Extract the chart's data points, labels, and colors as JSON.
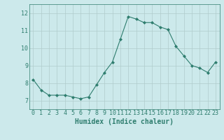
{
  "x": [
    0,
    1,
    2,
    3,
    4,
    5,
    6,
    7,
    8,
    9,
    10,
    11,
    12,
    13,
    14,
    15,
    16,
    17,
    18,
    19,
    20,
    21,
    22,
    23
  ],
  "y": [
    8.2,
    7.6,
    7.3,
    7.3,
    7.3,
    7.2,
    7.1,
    7.2,
    7.9,
    8.6,
    9.2,
    10.5,
    11.8,
    11.65,
    11.45,
    11.45,
    11.2,
    11.05,
    10.1,
    9.55,
    9.0,
    8.85,
    8.6,
    9.2
  ],
  "line_color": "#2e7d6e",
  "marker": "D",
  "marker_size": 2,
  "bg_color": "#cce9eb",
  "grid_color": "#b0cccc",
  "xlabel": "Humidex (Indice chaleur)",
  "xlabel_fontsize": 7,
  "tick_fontsize": 6,
  "ylim": [
    6.5,
    12.5
  ],
  "xlim": [
    -0.5,
    23.5
  ],
  "yticks": [
    7,
    8,
    9,
    10,
    11,
    12
  ],
  "xticks": [
    0,
    1,
    2,
    3,
    4,
    5,
    6,
    7,
    8,
    9,
    10,
    11,
    12,
    13,
    14,
    15,
    16,
    17,
    18,
    19,
    20,
    21,
    22,
    23
  ]
}
